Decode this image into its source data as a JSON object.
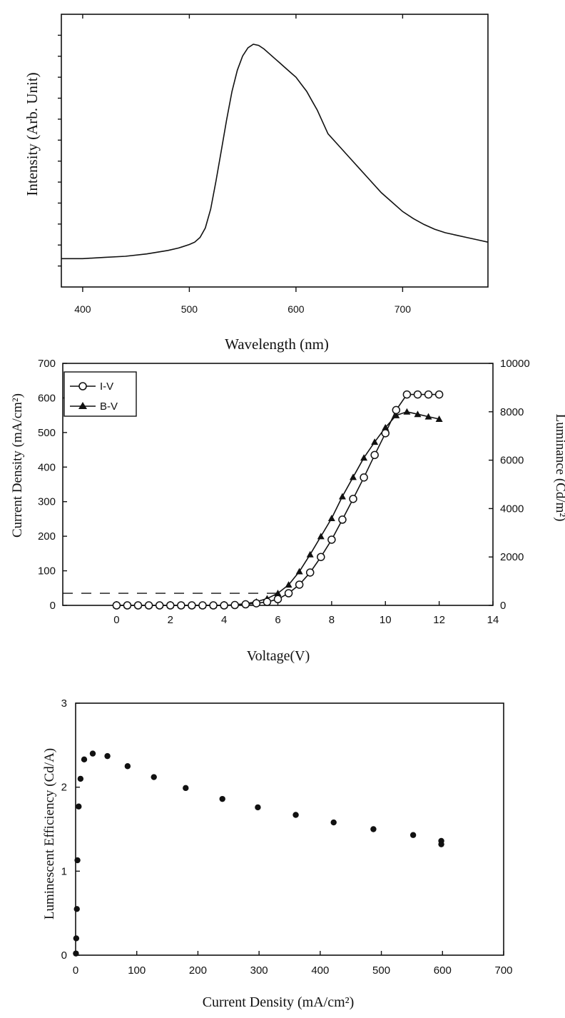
{
  "chart_data": [
    {
      "type": "line",
      "title": "",
      "xlabel": "Wavelength (nm)",
      "ylabel": "Intensity (Arb. Unit)",
      "xlim": [
        380,
        780
      ],
      "ylim": [
        0,
        1
      ],
      "x_ticks": [
        400,
        500,
        600,
        700
      ],
      "x_tick_labels": [
        "400",
        "500",
        "600",
        "700"
      ],
      "y_minor_ticks": 12,
      "y_tick_labels_shown": false,
      "grid": false,
      "legend": null,
      "series": [
        {
          "x": [
            380,
            400,
            420,
            440,
            460,
            480,
            490,
            500,
            505,
            510,
            515,
            520,
            525,
            530,
            535,
            540,
            545,
            550,
            555,
            560,
            565,
            570,
            575,
            580,
            585,
            590,
            595,
            600,
            605,
            610,
            615,
            620,
            625,
            630,
            640,
            650,
            660,
            670,
            680,
            690,
            700,
            710,
            720,
            730,
            740,
            750,
            760,
            770,
            780
          ],
          "y": [
            0.09,
            0.09,
            0.095,
            0.1,
            0.11,
            0.125,
            0.135,
            0.15,
            0.16,
            0.18,
            0.22,
            0.3,
            0.42,
            0.55,
            0.68,
            0.8,
            0.89,
            0.95,
            0.985,
            1.0,
            0.995,
            0.98,
            0.96,
            0.94,
            0.92,
            0.9,
            0.88,
            0.86,
            0.83,
            0.8,
            0.76,
            0.72,
            0.67,
            0.62,
            0.57,
            0.52,
            0.47,
            0.42,
            0.37,
            0.33,
            0.29,
            0.26,
            0.235,
            0.215,
            0.2,
            0.19,
            0.18,
            0.17,
            0.16
          ]
        }
      ]
    },
    {
      "type": "line",
      "title": "",
      "xlabel": "Voltage(V)",
      "ylabel": "Current Density (mA/cm²)",
      "y2label": "Luminance (Cd/m²)",
      "xlim": [
        -2,
        14
      ],
      "ylim": [
        0,
        700
      ],
      "y2lim": [
        0,
        10000
      ],
      "x_ticks": [
        0,
        2,
        4,
        6,
        8,
        10,
        12,
        14
      ],
      "y_ticks": [
        0,
        100,
        200,
        300,
        400,
        500,
        600,
        700
      ],
      "y2_ticks": [
        0,
        2000,
        4000,
        6000,
        8000,
        10000
      ],
      "legend": "top-left",
      "dashed_line": {
        "y": 35,
        "x_from": -2,
        "x_to": 6
      },
      "series": [
        {
          "name": "I-V",
          "marker": "open-circle",
          "axis": "left",
          "x": [
            0,
            0.4,
            0.8,
            1.2,
            1.6,
            2.0,
            2.4,
            2.8,
            3.2,
            3.6,
            4.0,
            4.4,
            4.8,
            5.2,
            5.6,
            6.0,
            6.4,
            6.8,
            7.2,
            7.6,
            8.0,
            8.4,
            8.8,
            9.2,
            9.6,
            10.0,
            10.4,
            10.8,
            11.2,
            11.6,
            12.0
          ],
          "y": [
            0,
            0,
            0,
            0,
            0,
            0,
            0,
            0,
            0,
            0,
            0,
            1,
            3,
            6,
            10,
            18,
            35,
            60,
            95,
            140,
            190,
            248,
            308,
            370,
            435,
            498,
            565,
            610,
            610,
            610,
            610
          ]
        },
        {
          "name": "B-V",
          "marker": "filled-triangle",
          "axis": "right",
          "x": [
            0,
            0.4,
            0.8,
            1.2,
            1.6,
            2.0,
            2.4,
            2.8,
            3.2,
            3.6,
            4.0,
            4.4,
            4.8,
            5.2,
            5.6,
            6.0,
            6.4,
            6.8,
            7.2,
            7.6,
            8.0,
            8.4,
            8.8,
            9.2,
            9.6,
            10.0,
            10.4,
            10.8,
            11.2,
            11.6,
            12.0
          ],
          "y": [
            0,
            0,
            0,
            0,
            0,
            0,
            0,
            0,
            0,
            0,
            0,
            30,
            70,
            150,
            280,
            500,
            850,
            1400,
            2100,
            2850,
            3600,
            4500,
            5300,
            6100,
            6750,
            7350,
            7850,
            8000,
            7900,
            7800,
            7700
          ]
        }
      ]
    },
    {
      "type": "scatter",
      "title": "",
      "xlabel": "Current Density (mA/cm²)",
      "ylabel": "Luminescent Efficiency (Cd/A)",
      "xlim": [
        0,
        700
      ],
      "ylim": [
        0,
        3
      ],
      "x_ticks": [
        0,
        100,
        200,
        300,
        400,
        500,
        600,
        700
      ],
      "y_ticks": [
        0,
        1,
        2,
        3
      ],
      "grid": false,
      "legend": null,
      "series": [
        {
          "marker": "filled-circle",
          "x": [
            0.5,
            1,
            2,
            3,
            5,
            8,
            14,
            28,
            52,
            85,
            128,
            180,
            240,
            298,
            360,
            422,
            487,
            552,
            598,
            598
          ],
          "y": [
            0.02,
            0.2,
            0.55,
            1.13,
            1.77,
            2.1,
            2.33,
            2.4,
            2.37,
            2.25,
            2.12,
            1.99,
            1.86,
            1.76,
            1.67,
            1.58,
            1.5,
            1.43,
            1.36,
            1.32
          ]
        }
      ]
    }
  ]
}
